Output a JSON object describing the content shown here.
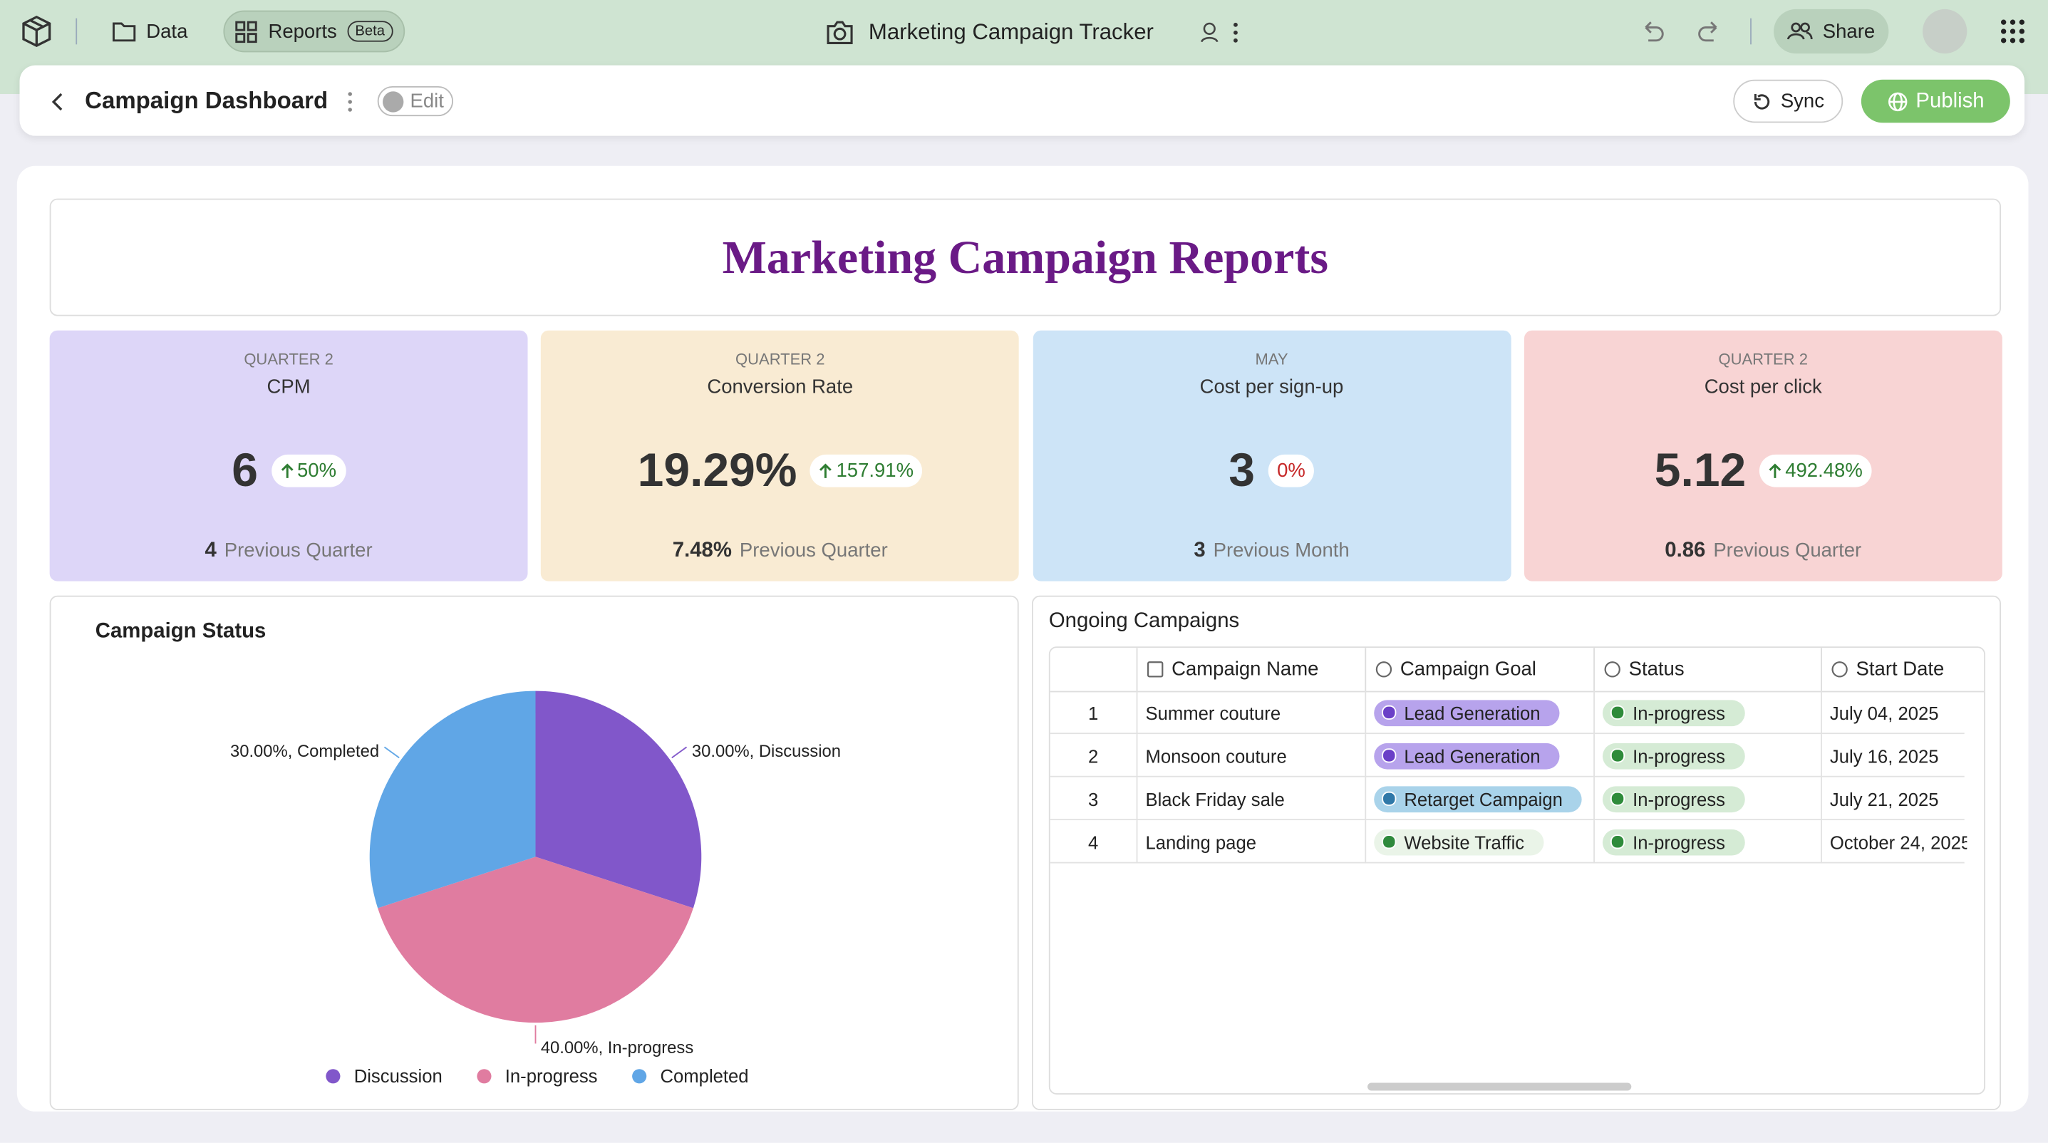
{
  "app": {
    "nav": [
      "Data",
      "Reports"
    ],
    "beta": "Beta",
    "doc_title": "Marketing Campaign Tracker",
    "share": "Share"
  },
  "toolbar": {
    "title": "Campaign Dashboard",
    "edit": "Edit",
    "sync": "Sync",
    "publish": "Publish"
  },
  "report_title": "Marketing Campaign Reports",
  "kpis": [
    {
      "period": "QUARTER 2",
      "name": "CPM",
      "value": "6",
      "change": "50%",
      "trend": "up",
      "previous": "4",
      "previous_label": "Previous Quarter",
      "color": "#ddd6f8"
    },
    {
      "period": "QUARTER 2",
      "name": "Conversion Rate",
      "value": "19.29%",
      "change": "157.91%",
      "trend": "up",
      "previous": "7.48%",
      "previous_label": "Previous Quarter",
      "color": "#f9ebd3"
    },
    {
      "period": "MAY",
      "name": "Cost per sign-up",
      "value": "3",
      "change": "0%",
      "trend": "flat",
      "previous": "3",
      "previous_label": "Previous Month",
      "color": "#cde4f7"
    },
    {
      "period": "QUARTER 2",
      "name": "Cost per click",
      "value": "5.12",
      "change": "492.48%",
      "trend": "up",
      "previous": "0.86",
      "previous_label": "Previous Quarter",
      "color": "#f8d4d4"
    }
  ],
  "chart_data": {
    "type": "pie",
    "title": "Campaign Status",
    "categories": [
      "Discussion",
      "In-progress",
      "Completed"
    ],
    "values": [
      30,
      40,
      30
    ],
    "value_labels": [
      "30.00%, Discussion",
      "40.00%, In-progress",
      "30.00%, Completed"
    ],
    "colors": [
      "#8157ca",
      "#e07ca0",
      "#60a6e6"
    ]
  },
  "table": {
    "title": "Ongoing Campaigns",
    "columns": [
      "Campaign Name",
      "Campaign Goal",
      "Status",
      "Start Date"
    ],
    "rows": [
      [
        "1",
        "Summer couture",
        "Lead Generation",
        "In-progress",
        "July 04, 2025"
      ],
      [
        "2",
        "Monsoon couture",
        "Lead Generation",
        "In-progress",
        "July 16, 2025"
      ],
      [
        "3",
        "Black Friday sale",
        "Retarget Campaign",
        "In-progress",
        "July 21, 2025"
      ],
      [
        "4",
        "Landing page",
        "Website Traffic",
        "In-progress",
        "October 24, 2025"
      ]
    ],
    "tag_colors": {
      "Lead Generation": [
        "#b7a3ec",
        "#6a3fc7"
      ],
      "Retarget Campaign": [
        "#a9d3ea",
        "#2f78a8"
      ],
      "Website Traffic": [
        "#eaf4e8",
        "#2f8a3c"
      ],
      "In-progress": [
        "#d5ebd5",
        "#2e8b3a"
      ]
    }
  }
}
